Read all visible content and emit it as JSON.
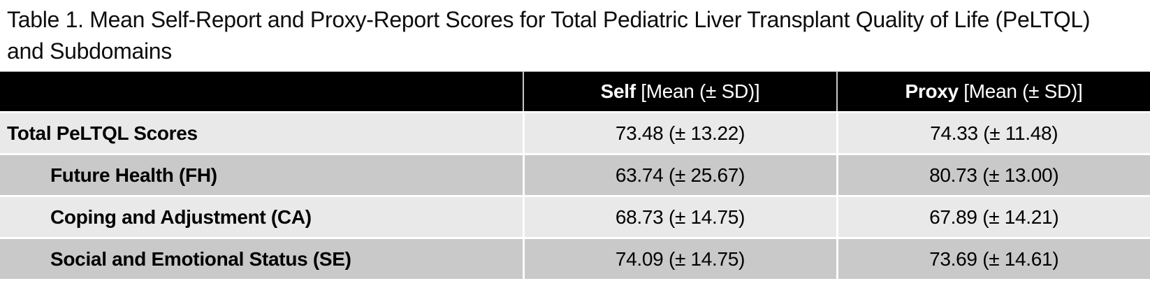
{
  "title": "Table 1. Mean Self-Report and Proxy-Report Scores for Total Pediatric Liver Transplant Quality of Life (PeLTQL) and Subdomains",
  "table": {
    "header": {
      "label_col": "",
      "self": {
        "bold": "Self",
        "rest": " [Mean (± SD)]"
      },
      "proxy": {
        "bold": "Proxy",
        "rest": " [Mean (± SD)]"
      }
    },
    "rows": [
      {
        "label": "Total PeLTQL Scores",
        "indent": false,
        "self": "73.48 (± 13.22)",
        "proxy": "74.33 (± 11.48)"
      },
      {
        "label": "Future Health (FH)",
        "indent": true,
        "self": "63.74 (± 25.67)",
        "proxy": "80.73 (± 13.00)"
      },
      {
        "label": "Coping and Adjustment (CA)",
        "indent": true,
        "self": "68.73 (± 14.75)",
        "proxy": "67.89 (± 14.21)"
      },
      {
        "label": "Social and Emotional Status (SE)",
        "indent": true,
        "self": "74.09 (± 14.75)",
        "proxy": "73.69 (± 14.61)"
      }
    ]
  },
  "colors": {
    "header_bg": "#000000",
    "header_text": "#ffffff",
    "row_light": "#e9e9e9",
    "row_dark": "#c9c9c9",
    "divider": "#ffffff",
    "body_text": "#000000"
  }
}
